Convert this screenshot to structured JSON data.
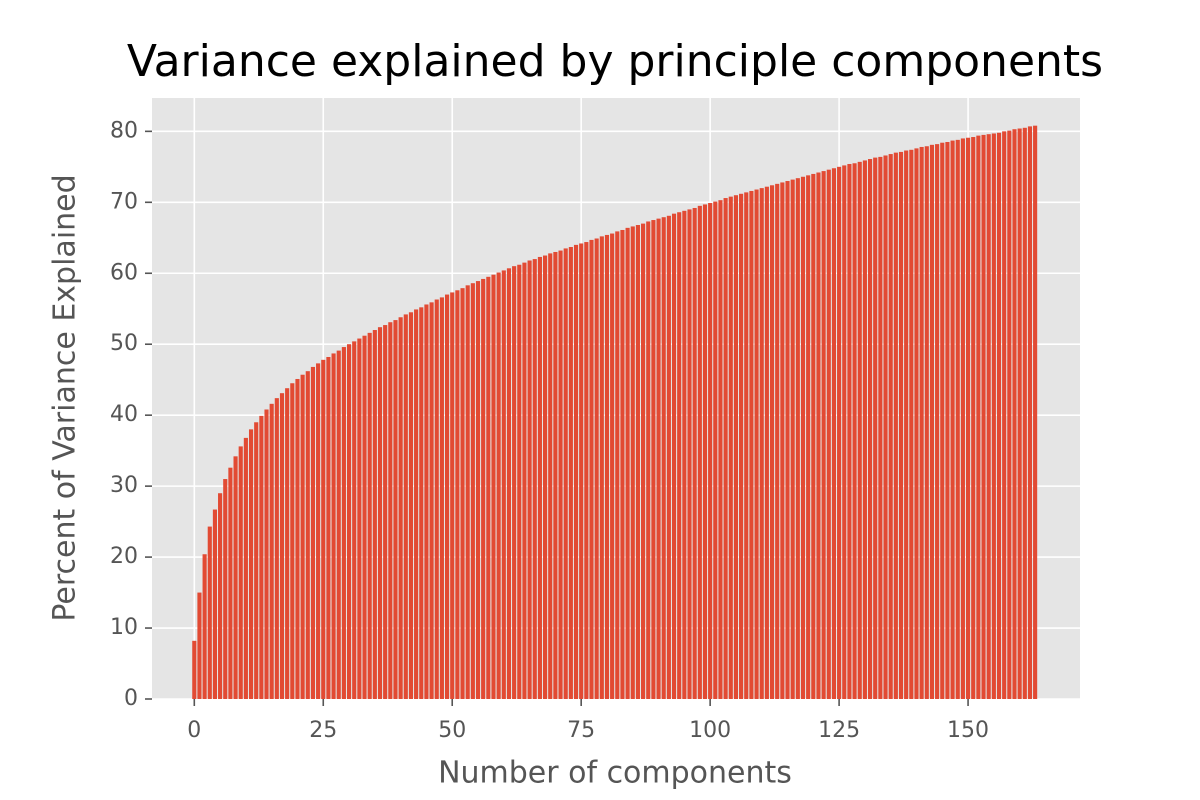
{
  "chart_data": {
    "type": "bar",
    "title": "Variance explained by principle components",
    "x_label": "Number of components",
    "y_label": "Percent of Variance Explained",
    "color": "#E24A33",
    "grid": true,
    "x": [
      0,
      1,
      2,
      3,
      4,
      5,
      6,
      7,
      8,
      9,
      10,
      11,
      12,
      13,
      14,
      15,
      16,
      17,
      18,
      19,
      20,
      21,
      22,
      23,
      24,
      25,
      26,
      27,
      28,
      29,
      30,
      31,
      32,
      33,
      34,
      35,
      36,
      37,
      38,
      39,
      40,
      41,
      42,
      43,
      44,
      45,
      46,
      47,
      48,
      49,
      50,
      51,
      52,
      53,
      54,
      55,
      56,
      57,
      58,
      59,
      60,
      61,
      62,
      63,
      64,
      65,
      66,
      67,
      68,
      69,
      70,
      71,
      72,
      73,
      74,
      75,
      76,
      77,
      78,
      79,
      80,
      81,
      82,
      83,
      84,
      85,
      86,
      87,
      88,
      89,
      90,
      91,
      92,
      93,
      94,
      95,
      96,
      97,
      98,
      99,
      100,
      101,
      102,
      103,
      104,
      105,
      106,
      107,
      108,
      109,
      110,
      111,
      112,
      113,
      114,
      115,
      116,
      117,
      118,
      119,
      120,
      121,
      122,
      123,
      124,
      125,
      126,
      127,
      128,
      129,
      130,
      131,
      132,
      133,
      134,
      135,
      136,
      137,
      138,
      139,
      140,
      141,
      142,
      143,
      144,
      145,
      146,
      147,
      148,
      149,
      150,
      151,
      152,
      153,
      154,
      155,
      156,
      157,
      158,
      159,
      160,
      161,
      162,
      163
    ],
    "values": [
      8.2,
      15.0,
      20.4,
      24.3,
      26.7,
      29.0,
      31.0,
      32.6,
      34.2,
      35.6,
      36.8,
      38.0,
      39.0,
      39.9,
      40.8,
      41.6,
      42.4,
      43.1,
      43.8,
      44.5,
      45.1,
      45.7,
      46.2,
      46.8,
      47.3,
      47.8,
      48.2,
      48.7,
      49.1,
      49.6,
      50.0,
      50.4,
      50.8,
      51.2,
      51.6,
      52.0,
      52.4,
      52.7,
      53.1,
      53.4,
      53.8,
      54.2,
      54.5,
      54.9,
      55.2,
      55.6,
      55.9,
      56.3,
      56.6,
      57.0,
      57.3,
      57.6,
      57.9,
      58.3,
      58.6,
      58.9,
      59.2,
      59.5,
      59.8,
      60.1,
      60.4,
      60.7,
      61.0,
      61.2,
      61.5,
      61.8,
      62.0,
      62.3,
      62.5,
      62.8,
      63.0,
      63.2,
      63.5,
      63.7,
      64.0,
      64.2,
      64.4,
      64.7,
      64.9,
      65.2,
      65.4,
      65.6,
      65.9,
      66.1,
      66.4,
      66.6,
      66.8,
      67.0,
      67.3,
      67.5,
      67.7,
      67.9,
      68.1,
      68.4,
      68.6,
      68.8,
      69.0,
      69.2,
      69.5,
      69.7,
      69.9,
      70.1,
      70.3,
      70.6,
      70.8,
      71.0,
      71.2,
      71.4,
      71.6,
      71.8,
      72.0,
      72.2,
      72.4,
      72.6,
      72.8,
      73.0,
      73.2,
      73.4,
      73.6,
      73.8,
      74.0,
      74.2,
      74.4,
      74.6,
      74.8,
      75.0,
      75.2,
      75.4,
      75.5,
      75.7,
      75.9,
      76.1,
      76.3,
      76.4,
      76.6,
      76.8,
      77.0,
      77.1,
      77.3,
      77.4,
      77.6,
      77.8,
      77.9,
      78.1,
      78.2,
      78.4,
      78.5,
      78.7,
      78.8,
      79.0,
      79.1,
      79.2,
      79.4,
      79.5,
      79.6,
      79.7,
      79.8,
      80.0,
      80.1,
      80.3,
      80.4,
      80.5,
      80.7,
      80.8
    ],
    "xlim": [
      -8.2,
      171.7
    ],
    "ylim": [
      0,
      84.7
    ],
    "xticks": [
      0,
      25,
      50,
      75,
      100,
      125,
      150
    ],
    "yticks": [
      0,
      10,
      20,
      30,
      40,
      50,
      60,
      70,
      80
    ]
  }
}
